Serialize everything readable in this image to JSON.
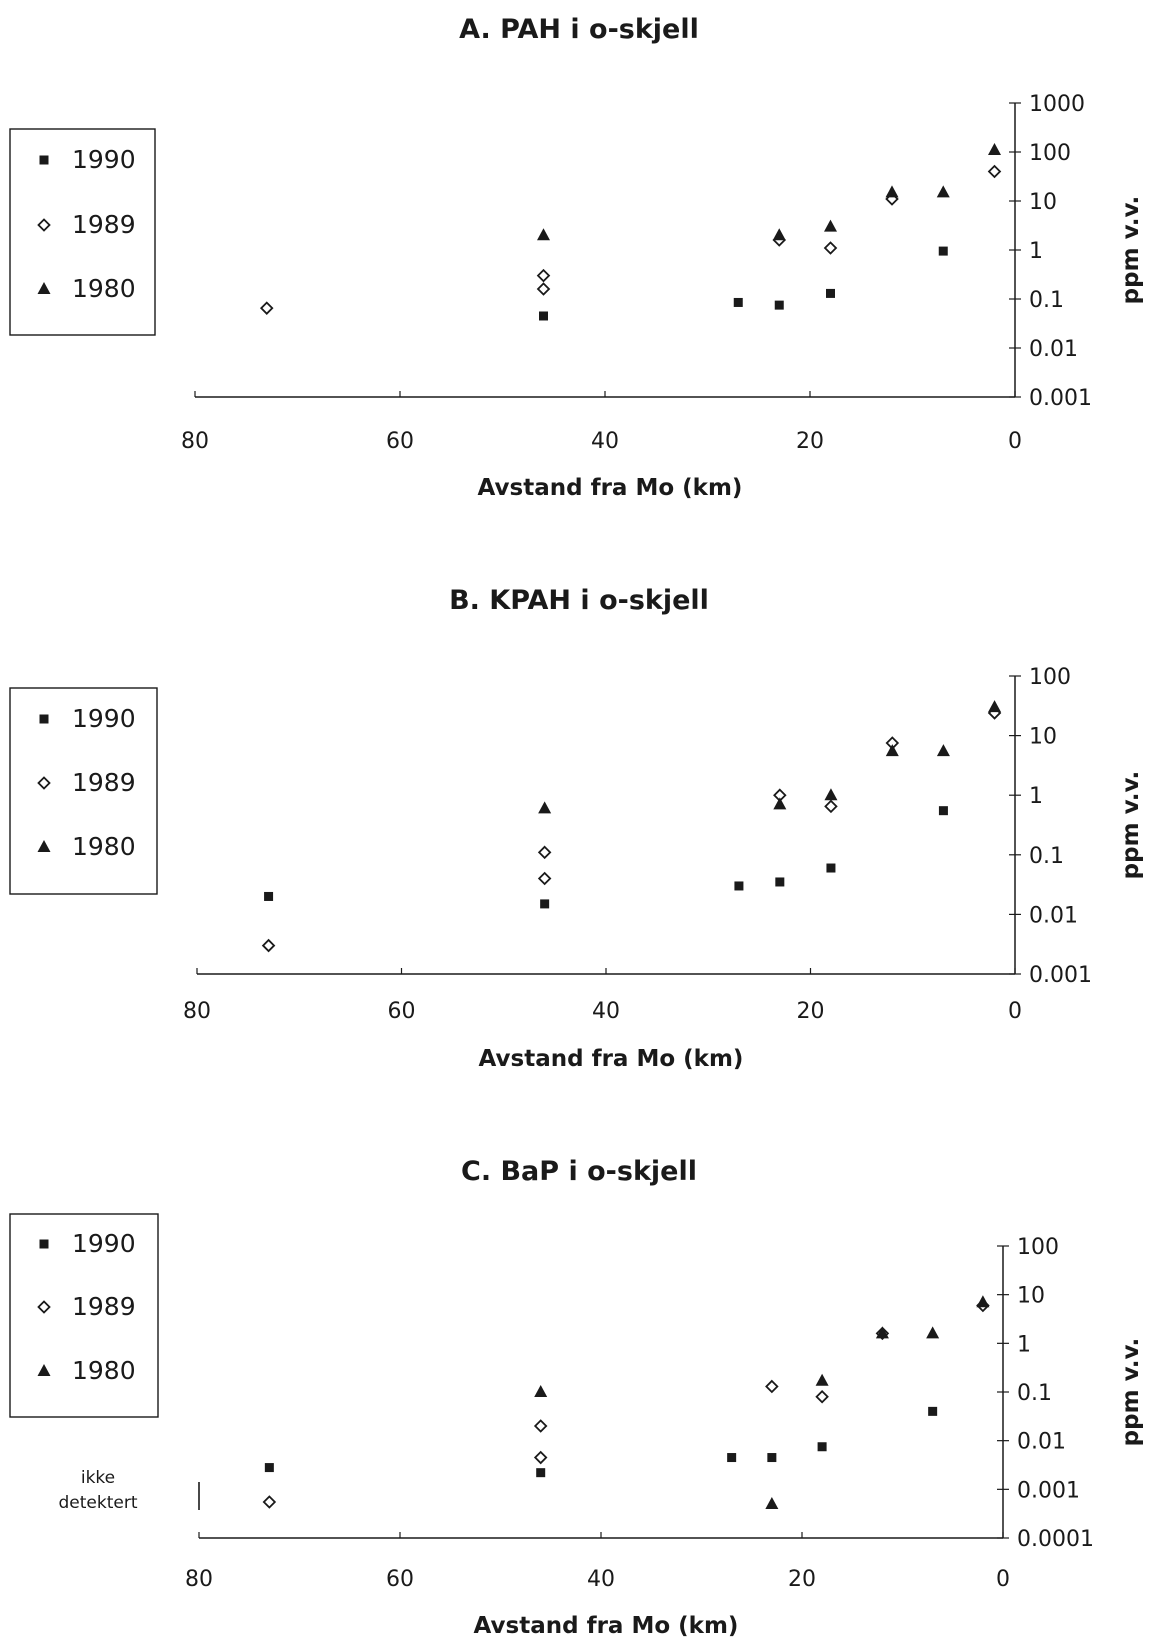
{
  "colors": {
    "ink": "#1a1a1a",
    "background": "#ffffff"
  },
  "chart_data": [
    {
      "type": "scatter",
      "title": "A. PAH i o-skjell",
      "xlabel": "Avstand fra Mo (km)",
      "ylabel": "ppm v.v.",
      "xlim": [
        80,
        0
      ],
      "x_ticks": [
        80,
        60,
        40,
        20,
        0
      ],
      "x_tick_labels": [
        "80",
        "60",
        "40",
        "20",
        "0"
      ],
      "y_scale": "log",
      "ylim": [
        0.001,
        1000
      ],
      "y_ticks": [
        0.001,
        0.01,
        0.1,
        1,
        10,
        100,
        1000
      ],
      "y_tick_labels": [
        "0.001",
        "0.01",
        "0.1",
        "1",
        "10",
        "100",
        "1000"
      ],
      "legend_position": "left",
      "note": "",
      "series": [
        {
          "name": "1990",
          "marker": "square",
          "points": [
            [
              46,
              0.045
            ],
            [
              27,
              0.085
            ],
            [
              23,
              0.075
            ],
            [
              18,
              0.13
            ],
            [
              7,
              0.95
            ]
          ]
        },
        {
          "name": "1989",
          "marker": "diamond",
          "points": [
            [
              73,
              0.065
            ],
            [
              46,
              0.3
            ],
            [
              46,
              0.16
            ],
            [
              23,
              1.6
            ],
            [
              18,
              1.1
            ],
            [
              12,
              11
            ],
            [
              2,
              40
            ]
          ]
        },
        {
          "name": "1980",
          "marker": "triangle",
          "points": [
            [
              46,
              2
            ],
            [
              23,
              2
            ],
            [
              18,
              3
            ],
            [
              12,
              15
            ],
            [
              7,
              15
            ],
            [
              2,
              110
            ]
          ]
        }
      ]
    },
    {
      "type": "scatter",
      "title": "B. KPAH i o-skjell",
      "xlabel": "Avstand fra Mo (km)",
      "ylabel": "ppm v.v.",
      "xlim": [
        80,
        0
      ],
      "x_ticks": [
        80,
        60,
        40,
        20,
        0
      ],
      "x_tick_labels": [
        "80",
        "60",
        "40",
        "20",
        "0"
      ],
      "y_scale": "log",
      "ylim": [
        0.001,
        100
      ],
      "y_ticks": [
        0.001,
        0.01,
        0.1,
        1,
        10,
        100
      ],
      "y_tick_labels": [
        "0.001",
        "0.01",
        "0.1",
        "1",
        "10",
        "100"
      ],
      "legend_position": "left",
      "note": "",
      "series": [
        {
          "name": "1990",
          "marker": "square",
          "points": [
            [
              73,
              0.02
            ],
            [
              46,
              0.015
            ],
            [
              27,
              0.03
            ],
            [
              23,
              0.035
            ],
            [
              18,
              0.06
            ],
            [
              7,
              0.55
            ]
          ]
        },
        {
          "name": "1989",
          "marker": "diamond",
          "points": [
            [
              73,
              0.003
            ],
            [
              46,
              0.11
            ],
            [
              46,
              0.04
            ],
            [
              23,
              1
            ],
            [
              18,
              0.65
            ],
            [
              12,
              7.5
            ],
            [
              2,
              24
            ]
          ]
        },
        {
          "name": "1980",
          "marker": "triangle",
          "points": [
            [
              46,
              0.6
            ],
            [
              23,
              0.7
            ],
            [
              18,
              1
            ],
            [
              12,
              5.5
            ],
            [
              7,
              5.5
            ],
            [
              2,
              30
            ]
          ]
        }
      ]
    },
    {
      "type": "scatter",
      "title": "C. BaP i o-skjell",
      "xlabel": "Avstand fra Mo (km)",
      "ylabel": "ppm v.v.",
      "xlim": [
        80,
        0
      ],
      "x_ticks": [
        80,
        60,
        40,
        20,
        0
      ],
      "x_tick_labels": [
        "80",
        "60",
        "40",
        "20",
        "0"
      ],
      "y_scale": "log",
      "ylim": [
        0.0001,
        100
      ],
      "y_ticks": [
        0.0001,
        0.001,
        0.01,
        0.1,
        1,
        10,
        100
      ],
      "y_tick_labels": [
        "0.0001",
        "0.001",
        "0.01",
        "0.1",
        "1",
        "10",
        "100"
      ],
      "legend_position": "left",
      "note": "ikke detektert",
      "series": [
        {
          "name": "1990",
          "marker": "square",
          "points": [
            [
              73,
              0.0028
            ],
            [
              46,
              0.0022
            ],
            [
              27,
              0.0045
            ],
            [
              23,
              0.0045
            ],
            [
              18,
              0.0075
            ],
            [
              7,
              0.04
            ]
          ]
        },
        {
          "name": "1989",
          "marker": "diamond",
          "points": [
            [
              73,
              0.00055
            ],
            [
              46,
              0.02
            ],
            [
              46,
              0.0045
            ],
            [
              23,
              0.13
            ],
            [
              18,
              0.08
            ],
            [
              12,
              1.6
            ],
            [
              2,
              6
            ]
          ]
        },
        {
          "name": "1980",
          "marker": "triangle",
          "points": [
            [
              46,
              0.1
            ],
            [
              23,
              0.0005
            ],
            [
              18,
              0.17
            ],
            [
              12,
              1.6
            ],
            [
              7,
              1.6
            ],
            [
              2,
              7
            ]
          ]
        }
      ]
    }
  ]
}
